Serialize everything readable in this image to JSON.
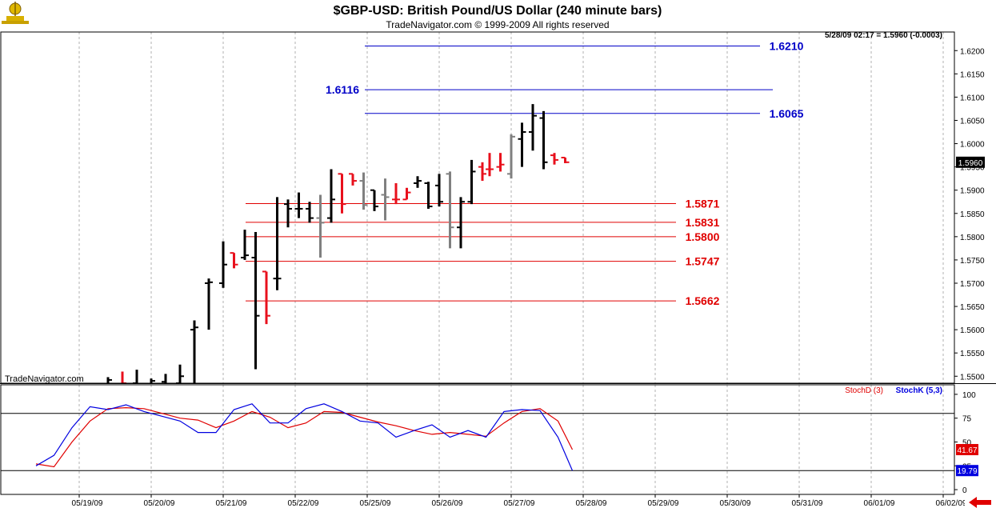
{
  "header": {
    "title": "$GBP-USD:  British Pound/US Dollar  (240 minute bars)",
    "subtitle": "TradeNavigator.com © 1999-2009 All rights reserved",
    "quote": "5/28/09 02:17 = 1.5960 (-0.0003)",
    "watermark": "TradeNavigator.com"
  },
  "colors": {
    "background": "#ffffff",
    "up_bar": "#000000",
    "down_bar": "#e8101c",
    "neutral_bar": "#808080",
    "fib_high": "#0000c8",
    "fib_low": "#e00000",
    "stoch_d": "#e00000",
    "stoch_k": "#0000e0",
    "grid": "#b0b0b0"
  },
  "chart_data": [
    {
      "type": "ohlc",
      "name": "price",
      "x_labels": [
        "05/19/09",
        "05/20/09",
        "05/21/09",
        "05/22/09",
        "05/25/09",
        "05/26/09",
        "05/27/09",
        "05/28/09",
        "05/29/09",
        "05/30/09",
        "05/31/09",
        "06/01/09",
        "06/02/09"
      ],
      "y_ticks": [
        "1.6200",
        "1.6150",
        "1.6100",
        "1.6050",
        "1.6000",
        "1.5950",
        "1.5900",
        "1.5850",
        "1.5800",
        "1.5750",
        "1.5700",
        "1.5650",
        "1.5600",
        "1.5550",
        "1.5500"
      ],
      "ylim": [
        1.5485,
        1.624
      ],
      "last_price": "1.5960",
      "grid": true,
      "bars": [
        {
          "x": 0.4,
          "o": 1.5482,
          "h": 1.5498,
          "l": 1.548,
          "c": 1.5492,
          "col": "up"
        },
        {
          "x": 0.6,
          "o": 1.548,
          "h": 1.551,
          "l": 1.5478,
          "c": 1.5485,
          "col": "down"
        },
        {
          "x": 0.8,
          "o": 1.5485,
          "h": 1.5514,
          "l": 1.548,
          "c": 1.5483,
          "col": "up"
        },
        {
          "x": 1.0,
          "o": 1.5482,
          "h": 1.5495,
          "l": 1.5478,
          "c": 1.549,
          "col": "up"
        },
        {
          "x": 1.2,
          "o": 1.5488,
          "h": 1.5505,
          "l": 1.548,
          "c": 1.5484,
          "col": "up"
        },
        {
          "x": 1.4,
          "o": 1.5485,
          "h": 1.5525,
          "l": 1.5478,
          "c": 1.55,
          "col": "up"
        },
        {
          "x": 1.6,
          "o": 1.56,
          "h": 1.562,
          "l": 1.548,
          "c": 1.5605,
          "col": "up"
        },
        {
          "x": 1.8,
          "o": 1.57,
          "h": 1.571,
          "l": 1.56,
          "c": 1.5702,
          "col": "up"
        },
        {
          "x": 2.0,
          "o": 1.57,
          "h": 1.579,
          "l": 1.569,
          "c": 1.574,
          "col": "up"
        },
        {
          "x": 2.15,
          "o": 1.5765,
          "h": 1.5765,
          "l": 1.5732,
          "c": 1.574,
          "col": "down"
        },
        {
          "x": 2.3,
          "o": 1.5755,
          "h": 1.5815,
          "l": 1.575,
          "c": 1.576,
          "col": "up"
        },
        {
          "x": 2.45,
          "o": 1.5755,
          "h": 1.581,
          "l": 1.5515,
          "c": 1.563,
          "col": "up"
        },
        {
          "x": 2.6,
          "o": 1.5725,
          "h": 1.5725,
          "l": 1.5612,
          "c": 1.563,
          "col": "down"
        },
        {
          "x": 2.75,
          "o": 1.571,
          "h": 1.5885,
          "l": 1.5685,
          "c": 1.571,
          "col": "up"
        },
        {
          "x": 2.9,
          "o": 1.587,
          "h": 1.588,
          "l": 1.582,
          "c": 1.586,
          "col": "up"
        },
        {
          "x": 3.05,
          "o": 1.586,
          "h": 1.5895,
          "l": 1.584,
          "c": 1.586,
          "col": "up"
        },
        {
          "x": 3.2,
          "o": 1.586,
          "h": 1.5875,
          "l": 1.583,
          "c": 1.584,
          "col": "up"
        },
        {
          "x": 3.35,
          "o": 1.584,
          "h": 1.589,
          "l": 1.5755,
          "c": 1.583,
          "col": "neutral"
        },
        {
          "x": 3.5,
          "o": 1.584,
          "h": 1.5945,
          "l": 1.583,
          "c": 1.588,
          "col": "up"
        },
        {
          "x": 3.65,
          "o": 1.5935,
          "h": 1.5935,
          "l": 1.585,
          "c": 1.587,
          "col": "down"
        },
        {
          "x": 3.8,
          "o": 1.5935,
          "h": 1.5935,
          "l": 1.591,
          "c": 1.592,
          "col": "down"
        },
        {
          "x": 3.95,
          "o": 1.592,
          "h": 1.5938,
          "l": 1.5858,
          "c": 1.5868,
          "col": "neutral"
        },
        {
          "x": 4.1,
          "o": 1.59,
          "h": 1.59,
          "l": 1.5855,
          "c": 1.5865,
          "col": "up"
        },
        {
          "x": 4.25,
          "o": 1.589,
          "h": 1.5925,
          "l": 1.5835,
          "c": 1.5885,
          "col": "neutral"
        },
        {
          "x": 4.4,
          "o": 1.588,
          "h": 1.5915,
          "l": 1.587,
          "c": 1.588,
          "col": "down"
        },
        {
          "x": 4.55,
          "o": 1.588,
          "h": 1.5905,
          "l": 1.588,
          "c": 1.5895,
          "col": "down"
        },
        {
          "x": 4.7,
          "o": 1.5915,
          "h": 1.593,
          "l": 1.5905,
          "c": 1.592,
          "col": "up"
        },
        {
          "x": 4.85,
          "o": 1.5915,
          "h": 1.5918,
          "l": 1.586,
          "c": 1.5865,
          "col": "up"
        },
        {
          "x": 5.0,
          "o": 1.591,
          "h": 1.5935,
          "l": 1.5865,
          "c": 1.5875,
          "col": "up"
        },
        {
          "x": 5.15,
          "o": 1.5935,
          "h": 1.594,
          "l": 1.5775,
          "c": 1.582,
          "col": "neutral"
        },
        {
          "x": 5.3,
          "o": 1.582,
          "h": 1.5885,
          "l": 1.5775,
          "c": 1.5875,
          "col": "up"
        },
        {
          "x": 5.45,
          "o": 1.5875,
          "h": 1.5965,
          "l": 1.587,
          "c": 1.594,
          "col": "up"
        },
        {
          "x": 5.6,
          "o": 1.595,
          "h": 1.596,
          "l": 1.592,
          "c": 1.5935,
          "col": "down"
        },
        {
          "x": 5.7,
          "o": 1.5945,
          "h": 1.598,
          "l": 1.593,
          "c": 1.5945,
          "col": "down"
        },
        {
          "x": 5.85,
          "o": 1.595,
          "h": 1.598,
          "l": 1.594,
          "c": 1.5955,
          "col": "down"
        },
        {
          "x": 6.0,
          "o": 1.5935,
          "h": 1.602,
          "l": 1.5925,
          "c": 1.6015,
          "col": "neutral"
        },
        {
          "x": 6.15,
          "o": 1.601,
          "h": 1.6045,
          "l": 1.595,
          "c": 1.6025,
          "col": "up"
        },
        {
          "x": 6.3,
          "o": 1.6025,
          "h": 1.6085,
          "l": 1.5985,
          "c": 1.606,
          "col": "up"
        },
        {
          "x": 6.45,
          "o": 1.6055,
          "h": 1.607,
          "l": 1.5945,
          "c": 1.596,
          "col": "up"
        },
        {
          "x": 6.6,
          "o": 1.5975,
          "h": 1.598,
          "l": 1.5955,
          "c": 1.5965,
          "col": "down"
        },
        {
          "x": 6.75,
          "o": 1.597,
          "h": 1.597,
          "l": 1.5958,
          "c": 1.596,
          "col": "down"
        }
      ],
      "levels": [
        {
          "value": 1.621,
          "label": "1.6210",
          "color": "fib_high"
        },
        {
          "value": 1.6116,
          "label": "1.6116",
          "color": "fib_high"
        },
        {
          "value": 1.6065,
          "label": "1.6065",
          "color": "fib_high"
        },
        {
          "value": 1.5871,
          "label": "1.5871",
          "color": "fib_low"
        },
        {
          "value": 1.5831,
          "label": "1.5831",
          "color": "fib_low"
        },
        {
          "value": 1.58,
          "label": "1.5800",
          "color": "fib_low"
        },
        {
          "value": 1.5747,
          "label": "1.5747",
          "color": "fib_low"
        },
        {
          "value": 1.5662,
          "label": "1.5662",
          "color": "fib_low"
        }
      ]
    },
    {
      "type": "line",
      "name": "stochastic",
      "y_ticks": [
        "100",
        "75",
        "50",
        "25",
        "0"
      ],
      "ylim": [
        -5,
        110
      ],
      "ref_levels": [
        80,
        20
      ],
      "series": [
        {
          "name": "StochD (3)",
          "color": "stoch_d",
          "last_label": "41.67",
          "points": [
            [
              -0.6,
              27
            ],
            [
              -0.35,
              24
            ],
            [
              -0.1,
              50
            ],
            [
              0.15,
              72
            ],
            [
              0.4,
              85
            ],
            [
              0.65,
              86
            ],
            [
              0.9,
              85
            ],
            [
              1.15,
              80
            ],
            [
              1.4,
              75
            ],
            [
              1.65,
              73
            ],
            [
              1.9,
              65
            ],
            [
              2.15,
              72
            ],
            [
              2.4,
              82
            ],
            [
              2.65,
              76
            ],
            [
              2.9,
              65
            ],
            [
              3.15,
              70
            ],
            [
              3.4,
              82
            ],
            [
              3.65,
              81
            ],
            [
              3.9,
              76
            ],
            [
              4.15,
              71
            ],
            [
              4.4,
              67
            ],
            [
              4.65,
              62
            ],
            [
              4.9,
              58
            ],
            [
              5.15,
              60
            ],
            [
              5.4,
              58
            ],
            [
              5.65,
              56
            ],
            [
              5.9,
              70
            ],
            [
              6.15,
              82
            ],
            [
              6.4,
              85
            ],
            [
              6.65,
              72
            ],
            [
              6.85,
              42
            ]
          ]
        },
        {
          "name": "StochK (5,3)",
          "color": "stoch_k",
          "last_label": "19.79",
          "points": [
            [
              -0.6,
              25
            ],
            [
              -0.35,
              36
            ],
            [
              -0.1,
              65
            ],
            [
              0.15,
              87
            ],
            [
              0.4,
              84
            ],
            [
              0.65,
              89
            ],
            [
              0.9,
              82
            ],
            [
              1.15,
              77
            ],
            [
              1.4,
              72
            ],
            [
              1.65,
              60
            ],
            [
              1.9,
              60
            ],
            [
              2.15,
              84
            ],
            [
              2.4,
              90
            ],
            [
              2.65,
              70
            ],
            [
              2.9,
              70
            ],
            [
              3.15,
              85
            ],
            [
              3.4,
              90
            ],
            [
              3.65,
              82
            ],
            [
              3.9,
              72
            ],
            [
              4.15,
              70
            ],
            [
              4.4,
              55
            ],
            [
              4.65,
              62
            ],
            [
              4.9,
              68
            ],
            [
              5.15,
              55
            ],
            [
              5.4,
              62
            ],
            [
              5.65,
              55
            ],
            [
              5.9,
              82
            ],
            [
              6.15,
              84
            ],
            [
              6.4,
              83
            ],
            [
              6.65,
              55
            ],
            [
              6.85,
              20
            ]
          ]
        }
      ]
    }
  ]
}
